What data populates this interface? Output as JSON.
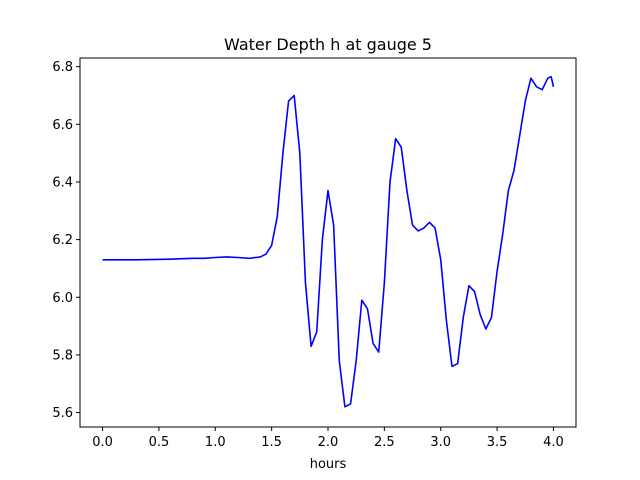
{
  "chart_data": {
    "type": "line",
    "title": "Water Depth h at gauge 5",
    "xlabel": "hours",
    "ylabel": "",
    "xlim": [
      -0.2,
      4.2
    ],
    "ylim": [
      5.55,
      6.83
    ],
    "xticks": [
      0.0,
      0.5,
      1.0,
      1.5,
      2.0,
      2.5,
      3.0,
      3.5,
      4.0
    ],
    "xtick_labels": [
      "0.0",
      "0.5",
      "1.0",
      "1.5",
      "2.0",
      "2.5",
      "3.0",
      "3.5",
      "4.0"
    ],
    "yticks": [
      5.6,
      5.8,
      6.0,
      6.2,
      6.4,
      6.6,
      6.8
    ],
    "ytick_labels": [
      "5.6",
      "5.8",
      "6.0",
      "6.2",
      "6.4",
      "6.6",
      "6.8"
    ],
    "grid": false,
    "series": [
      {
        "color": "#0000ff",
        "x": [
          0.0,
          0.3,
          0.6,
          0.8,
          0.9,
          1.0,
          1.1,
          1.2,
          1.3,
          1.4,
          1.45,
          1.5,
          1.55,
          1.6,
          1.65,
          1.7,
          1.75,
          1.8,
          1.85,
          1.9,
          1.95,
          2.0,
          2.05,
          2.1,
          2.15,
          2.2,
          2.25,
          2.3,
          2.35,
          2.4,
          2.45,
          2.5,
          2.55,
          2.6,
          2.65,
          2.7,
          2.75,
          2.8,
          2.85,
          2.9,
          2.95,
          3.0,
          3.05,
          3.1,
          3.15,
          3.2,
          3.25,
          3.3,
          3.35,
          3.4,
          3.45,
          3.5,
          3.55,
          3.6,
          3.65,
          3.7,
          3.75,
          3.8,
          3.85,
          3.9,
          3.95,
          3.98,
          4.0
        ],
        "y": [
          6.13,
          6.13,
          6.132,
          6.135,
          6.135,
          6.138,
          6.14,
          6.138,
          6.135,
          6.14,
          6.15,
          6.18,
          6.28,
          6.5,
          6.68,
          6.7,
          6.5,
          6.05,
          5.83,
          5.88,
          6.2,
          6.37,
          6.25,
          5.78,
          5.62,
          5.63,
          5.78,
          5.99,
          5.96,
          5.84,
          5.81,
          6.05,
          6.4,
          6.55,
          6.52,
          6.37,
          6.25,
          6.23,
          6.24,
          6.26,
          6.24,
          6.13,
          5.92,
          5.76,
          5.77,
          5.93,
          6.04,
          6.02,
          5.94,
          5.89,
          5.93,
          6.09,
          6.22,
          6.37,
          6.44,
          6.56,
          6.68,
          6.76,
          6.73,
          6.72,
          6.76,
          6.765,
          6.73
        ]
      }
    ]
  }
}
